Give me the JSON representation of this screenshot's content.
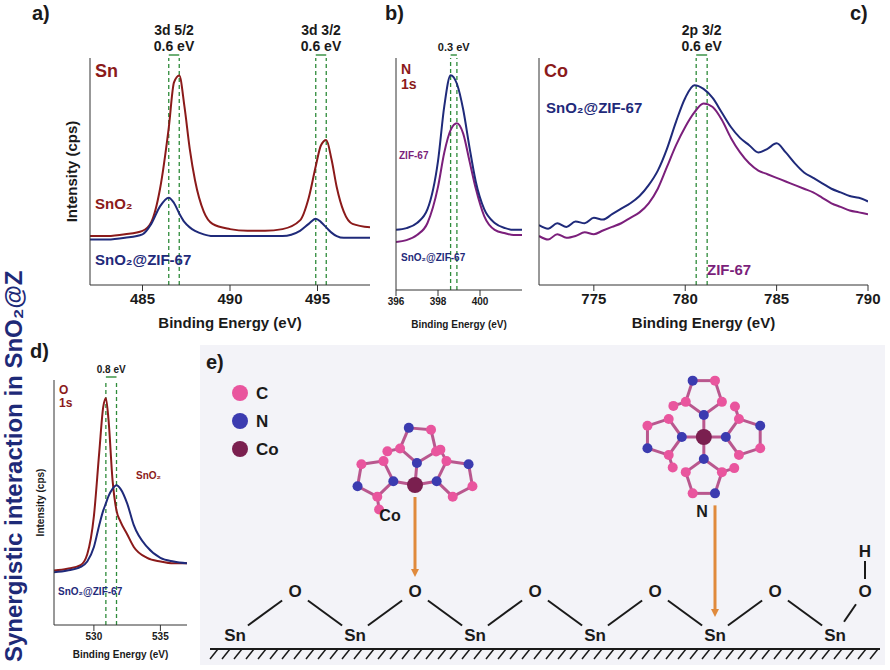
{
  "side_title": "Synergistic interaction in SnO₂@Z",
  "chart_data": [
    {
      "panel": "a)",
      "type": "line",
      "title": "Sn",
      "x_label": "Binding Energy (eV)",
      "y_label": "Intensity (cps)",
      "x": [
        482,
        483,
        484,
        485,
        485.5,
        486,
        486.5,
        486.8,
        487.1,
        487.4,
        487.7,
        488,
        488.5,
        489,
        490,
        491,
        492,
        493,
        494,
        494.5,
        494.9,
        495.2,
        495.5,
        495.8,
        496.1,
        496.5,
        497,
        498
      ],
      "series": [
        {
          "name": "SnO₂",
          "color": "#8b1a1a",
          "values": [
            8,
            8,
            9,
            11,
            16,
            35,
            70,
            96,
            100,
            82,
            58,
            40,
            22,
            15,
            12,
            11,
            11,
            12,
            17,
            30,
            48,
            60,
            63,
            52,
            36,
            22,
            15,
            13
          ]
        },
        {
          "name": "SnO₂@ZIF-67",
          "color": "#1f2a7a",
          "values": [
            6,
            6,
            7,
            9,
            15,
            25,
            30,
            27,
            21,
            16,
            13,
            11,
            9,
            8,
            8,
            8,
            8,
            8,
            11,
            15,
            18,
            16,
            13,
            10,
            8,
            7,
            7,
            7
          ]
        }
      ],
      "xlim": [
        482,
        498
      ],
      "xticks": [
        485,
        490,
        495
      ],
      "ylim": [
        -20,
        110
      ],
      "yticks": [],
      "tick_labels": "x",
      "grid": false,
      "annotations": [
        {
          "label": "3d 5/2",
          "text": "0.6 eV",
          "lines": [
            486.5,
            487.1
          ]
        },
        {
          "label": "3d 3/2",
          "text": "0.6 eV",
          "lines": [
            494.9,
            495.5
          ]
        }
      ]
    },
    {
      "panel": "b)",
      "type": "line",
      "title": "N 1s",
      "x_label": "Binding Energy (eV)",
      "x": [
        396,
        396.5,
        397,
        397.5,
        398,
        398.3,
        398.6,
        398.9,
        399.2,
        399.5,
        399.8,
        400.2,
        400.7,
        401.2,
        401.6,
        402
      ],
      "series": [
        {
          "name": "ZIF-67",
          "color": "#7b1f7b",
          "values": [
            3,
            4,
            7,
            14,
            35,
            55,
            68,
            72,
            66,
            50,
            34,
            18,
            10,
            8,
            7,
            7
          ]
        },
        {
          "name": "SnO₂@ZIF-67",
          "color": "#1f2a7a",
          "values": [
            10,
            11,
            14,
            22,
            50,
            82,
            100,
            95,
            80,
            58,
            38,
            22,
            14,
            11,
            10,
            10
          ]
        }
      ],
      "xlim": [
        396,
        402
      ],
      "xticks": [
        396,
        398,
        400
      ],
      "ylim": [
        -25,
        110
      ],
      "yticks": [],
      "tick_labels": "x",
      "grid": false,
      "annotations": [
        {
          "text": "0.3 eV",
          "lines": [
            398.6,
            398.9
          ]
        }
      ]
    },
    {
      "panel": "c)",
      "type": "line",
      "title": "Co",
      "x_label": "Binding Energy (eV)",
      "x": [
        772,
        772.5,
        773,
        773.5,
        774,
        774.5,
        775,
        775.5,
        776,
        776.5,
        777,
        777.5,
        778,
        778.5,
        779,
        779.5,
        780,
        780.5,
        781,
        781.5,
        782,
        782.5,
        783,
        783.5,
        784,
        784.5,
        785,
        785.5,
        786,
        786.5,
        787,
        787.5,
        788,
        788.5,
        789,
        789.5,
        790
      ],
      "series": [
        {
          "name": "SnO₂@ZIF-67",
          "color": "#1f2a7a",
          "values": [
            18,
            16,
            19,
            17,
            20,
            19,
            22,
            21,
            24,
            27,
            30,
            34,
            40,
            48,
            60,
            75,
            88,
            95,
            93,
            88,
            80,
            72,
            66,
            62,
            58,
            60,
            63,
            58,
            52,
            47,
            44,
            41,
            38,
            36,
            34,
            33,
            31
          ]
        },
        {
          "name": "ZIF-67",
          "color": "#7b1f7b",
          "values": [
            12,
            10,
            13,
            11,
            12,
            14,
            13,
            15,
            17,
            19,
            22,
            25,
            30,
            38,
            50,
            62,
            72,
            80,
            85,
            83,
            76,
            66,
            58,
            52,
            48,
            46,
            44,
            42,
            40,
            38,
            36,
            33,
            30,
            28,
            26,
            25,
            24
          ]
        }
      ],
      "xlim": [
        772,
        790
      ],
      "xticks": [
        775,
        780,
        785,
        790
      ],
      "ylim": [
        -15,
        110
      ],
      "yticks": [],
      "tick_labels": "x",
      "grid": false,
      "annotations": [
        {
          "label": "2p 3/2",
          "text": "0.6 eV",
          "lines": [
            780.6,
            781.2
          ]
        }
      ]
    },
    {
      "panel": "d)",
      "type": "line",
      "title": "O 1s",
      "x_label": "Binding Energy (eV)",
      "y_label": "Intensity (cps)",
      "x": [
        527,
        528,
        529,
        529.5,
        530,
        530.4,
        530.7,
        530.9,
        531.1,
        531.4,
        531.7,
        532,
        532.5,
        533,
        534,
        535,
        536,
        537
      ],
      "series": [
        {
          "name": "SnO₂",
          "color": "#8b1a1a",
          "values": [
            5,
            6,
            8,
            14,
            35,
            70,
            95,
            100,
            88,
            55,
            38,
            32,
            25,
            18,
            12,
            10,
            9,
            9
          ]
        },
        {
          "name": "SnO₂@ZIF-67",
          "color": "#1f2a7a",
          "values": [
            4,
            5,
            7,
            10,
            18,
            30,
            38,
            42,
            46,
            50,
            52,
            50,
            42,
            30,
            18,
            12,
            10,
            9
          ]
        }
      ],
      "xlim": [
        527,
        537
      ],
      "xticks": [
        530,
        535
      ],
      "ylim": [
        -25,
        110
      ],
      "yticks": [],
      "tick_labels": "x",
      "grid": false,
      "annotations": [
        {
          "text": "0.8 eV",
          "lines": [
            530.9,
            531.7
          ]
        }
      ]
    }
  ],
  "diagram": {
    "panel": "e)",
    "legend": [
      {
        "label": "C",
        "color": "#e9559e"
      },
      {
        "label": "N",
        "color": "#3b3bb0"
      },
      {
        "label": "Co",
        "color": "#7a1f4f"
      }
    ],
    "surface": [
      "Sn",
      "O",
      "Sn",
      "O",
      "Sn",
      "O",
      "Sn",
      "O",
      "Sn",
      "O",
      "Sn"
    ],
    "hydroxyl": [
      "O",
      "H"
    ],
    "bonds": [
      {
        "label": "Co",
        "surface_index": 3
      },
      {
        "label": "N",
        "surface_index": 8
      }
    ]
  }
}
